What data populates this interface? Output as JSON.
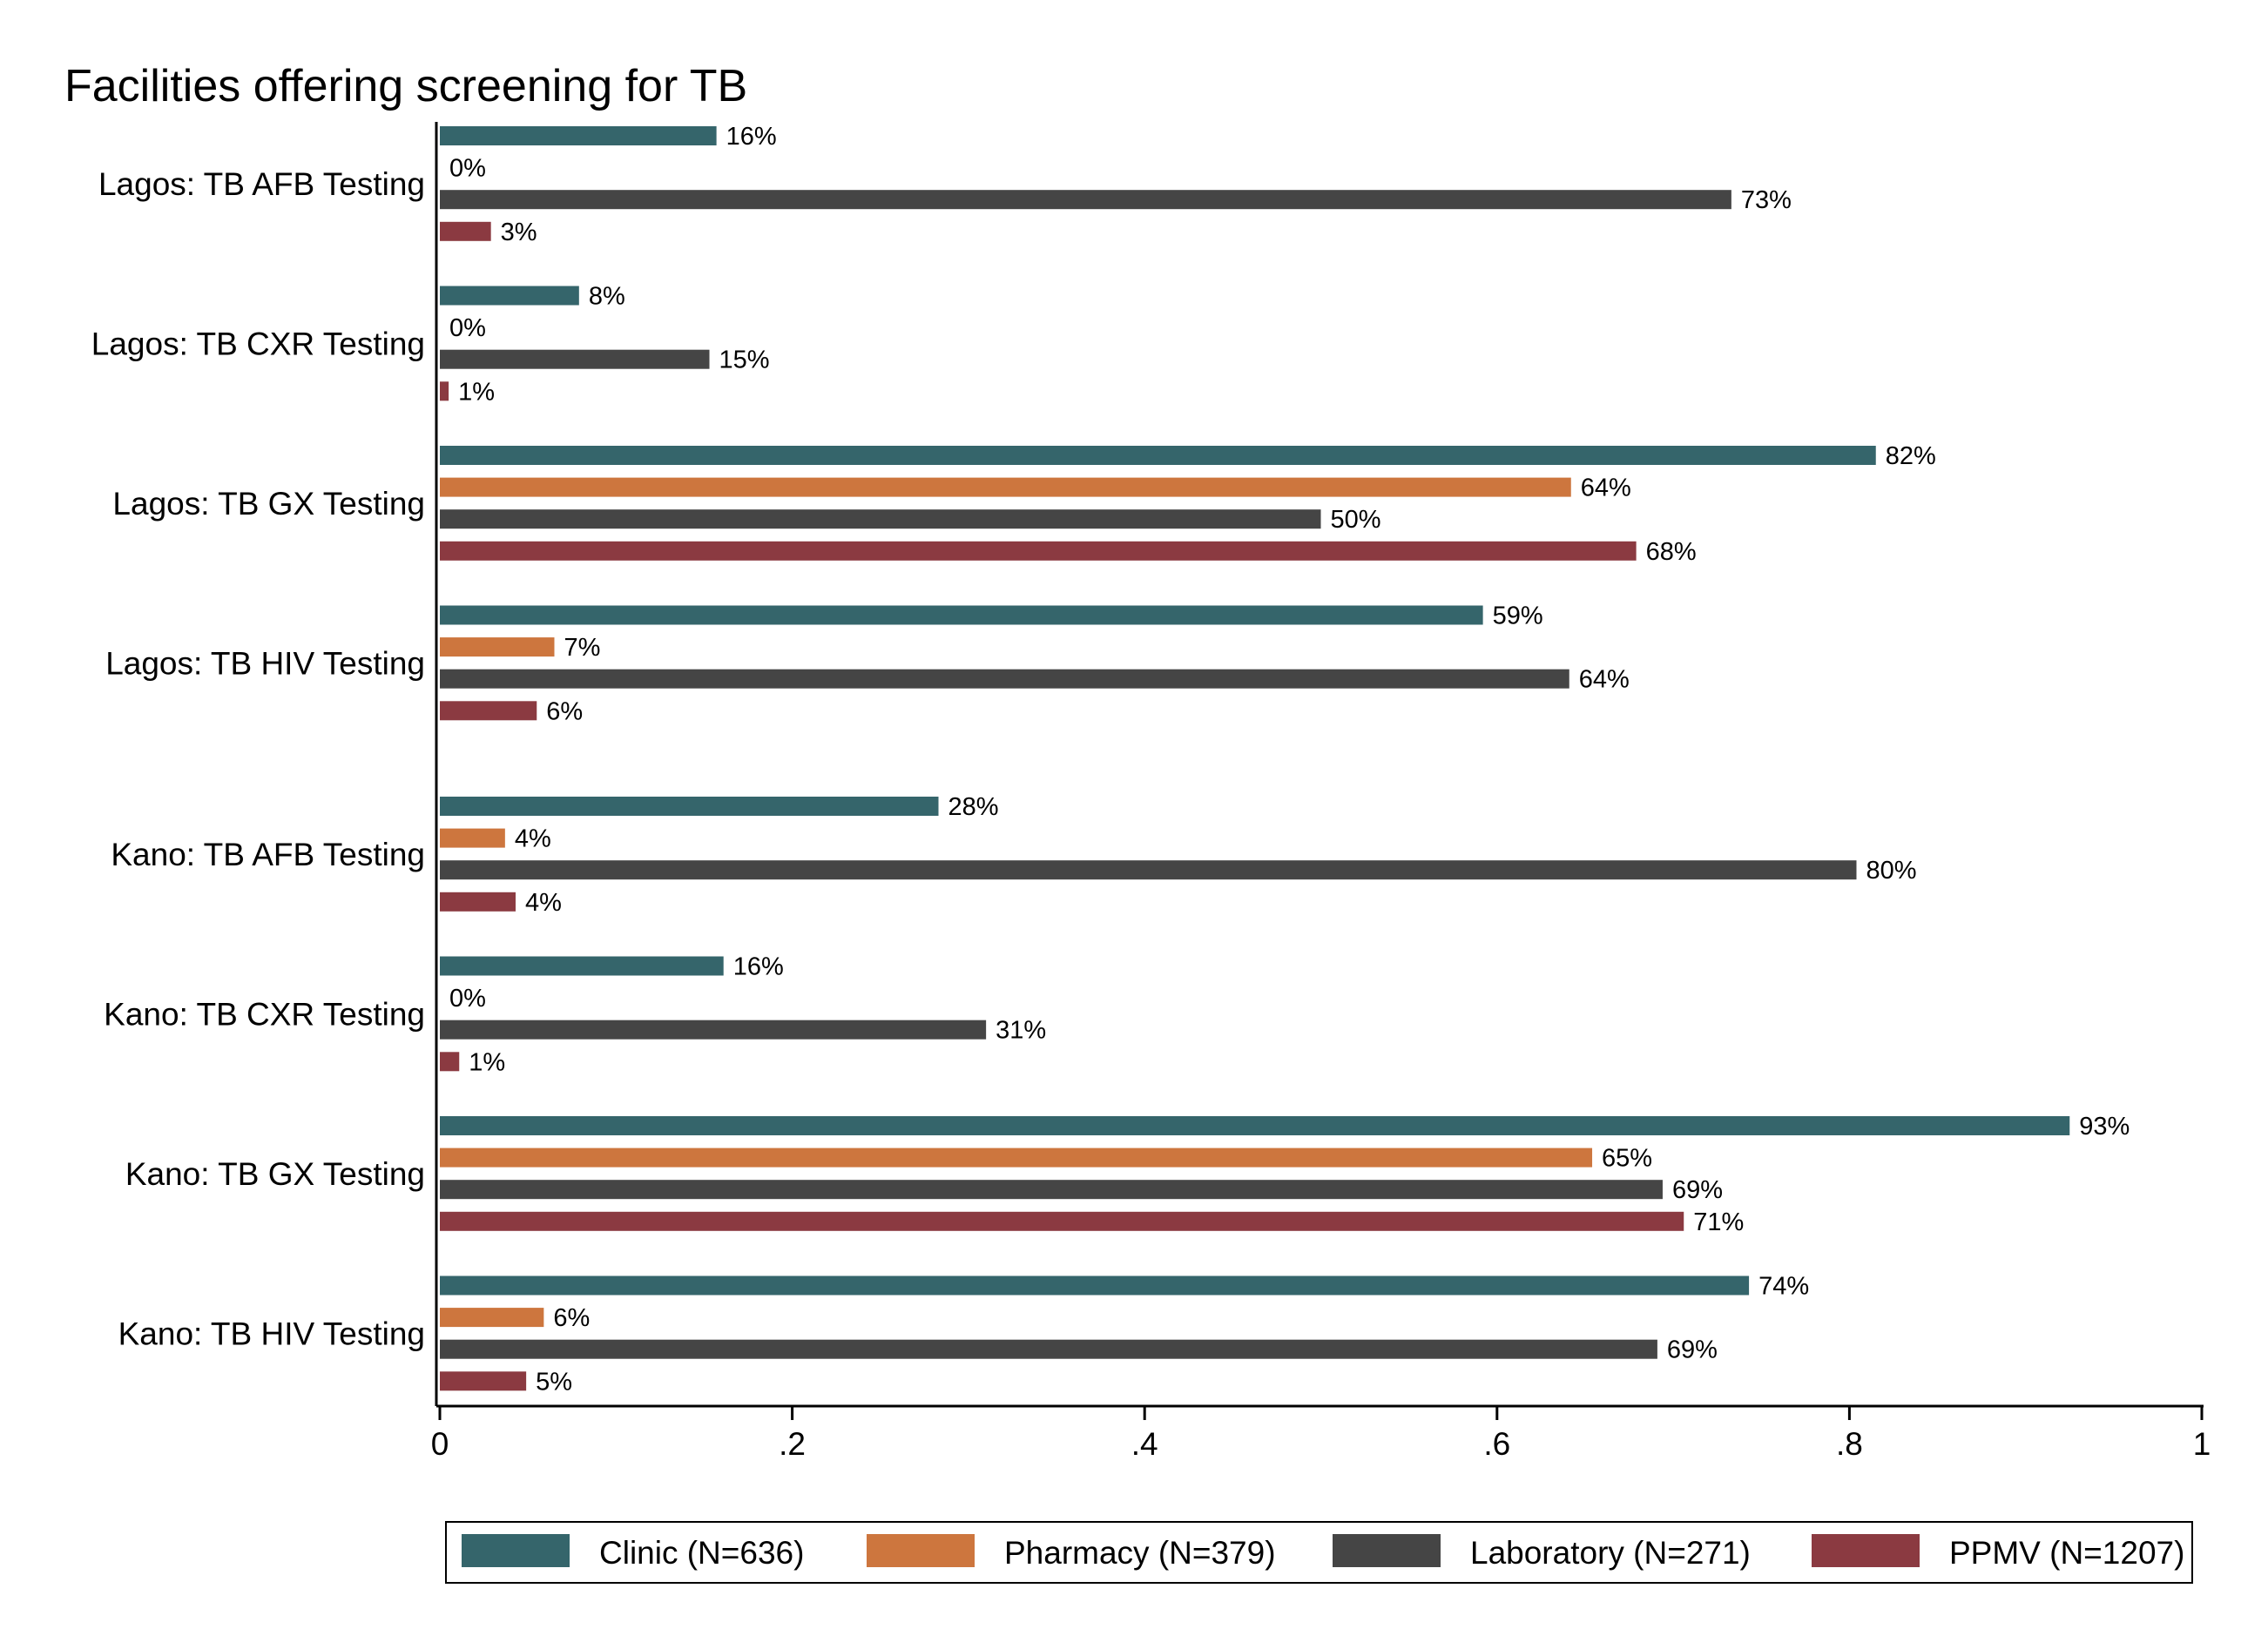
{
  "chart_data": {
    "type": "bar",
    "orientation": "horizontal",
    "title": "Facilities offering screening for TB",
    "categories": [
      "Lagos: TB AFB Testing",
      "Lagos: TB CXR Testing",
      "Lagos: TB GX Testing",
      "Lagos: TB HIV Testing",
      "Kano: TB AFB Testing",
      "Kano: TB CXR Testing",
      "Kano: TB GX Testing",
      "Kano: TB HIV Testing"
    ],
    "groups": [
      {
        "name": "Lagos",
        "categories": [
          0,
          1,
          2,
          3
        ]
      },
      {
        "name": "Kano",
        "categories": [
          4,
          5,
          6,
          7
        ]
      }
    ],
    "series": [
      {
        "name": "Clinic (N=636)",
        "color": "#35656b",
        "values": [
          0.157,
          0.079,
          0.815,
          0.592,
          0.283,
          0.161,
          0.925,
          0.743
        ],
        "labels": [
          "16%",
          "8%",
          "82%",
          "59%",
          "28%",
          "16%",
          "93%",
          "74%"
        ]
      },
      {
        "name": "Pharmacy (N=379)",
        "color": "#cd763e",
        "values": [
          0,
          0,
          0.642,
          0.065,
          0.037,
          0,
          0.654,
          0.059
        ],
        "labels": [
          "0%",
          "0%",
          "64%",
          "7%",
          "4%",
          "0%",
          "65%",
          "6%"
        ]
      },
      {
        "name": "Laboratory (N=271)",
        "color": "#454545",
        "values": [
          0.733,
          0.153,
          0.5,
          0.641,
          0.804,
          0.31,
          0.694,
          0.691
        ],
        "labels": [
          "73%",
          "15%",
          "50%",
          "64%",
          "80%",
          "31%",
          "69%",
          "69%"
        ]
      },
      {
        "name": "PPMV (N=1207)",
        "color": "#8b3a41",
        "values": [
          0.029,
          0.005,
          0.679,
          0.055,
          0.043,
          0.011,
          0.706,
          0.049
        ],
        "labels": [
          "3%",
          "1%",
          "68%",
          "6%",
          "4%",
          "1%",
          "71%",
          "5%"
        ]
      }
    ],
    "xlim": [
      0,
      1
    ],
    "xticks": [
      0,
      0.2,
      0.4,
      0.6,
      0.8,
      1
    ],
    "xtick_labels": [
      "0",
      ".2",
      ".4",
      ".6",
      ".8",
      "1"
    ],
    "xlabel": "",
    "ylabel": "",
    "grid": false,
    "legend": {
      "position": "bottom",
      "columns": 4,
      "boxed": true
    }
  }
}
